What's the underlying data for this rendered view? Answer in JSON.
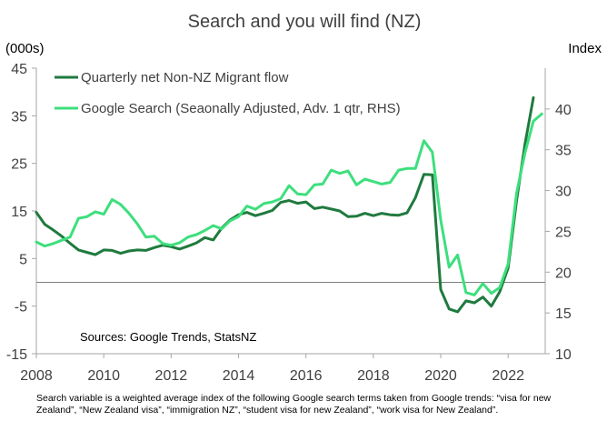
{
  "chart_data": {
    "type": "line",
    "title": "Search and you will find (NZ)",
    "left_axis_label": "(000s)",
    "right_axis_label": "Index",
    "y_left_lim": [
      -15,
      45
    ],
    "y_left_ticks": [
      -15,
      -5,
      5,
      15,
      25,
      35,
      45
    ],
    "y_right_lim": [
      10,
      45
    ],
    "y_right_ticks": [
      10,
      15,
      20,
      25,
      30,
      35,
      40
    ],
    "x_lim": [
      2008,
      2023.1
    ],
    "x_ticks": [
      2008,
      2010,
      2012,
      2014,
      2016,
      2018,
      2020,
      2022
    ],
    "zero_line": 0,
    "source_note": "Sources: Google Trends, StatsNZ",
    "footnote": "Search variable is a weighted average index of the following Google search terms taken from Google trends: “visa for new Zealand”, “New Zealand visa”, “immigration NZ”, “student visa for new Zealand”, “work visa for New Zealand”.",
    "series": [
      {
        "name": "Quarterly net Non-NZ Migrant flow",
        "axis": "left",
        "color": "#1f7a3e",
        "x": [
          2008.0,
          2008.25,
          2008.5,
          2008.75,
          2009.0,
          2009.25,
          2009.5,
          2009.75,
          2010.0,
          2010.25,
          2010.5,
          2010.75,
          2011.0,
          2011.25,
          2011.5,
          2011.75,
          2012.0,
          2012.25,
          2012.5,
          2012.75,
          2013.0,
          2013.25,
          2013.5,
          2013.75,
          2014.0,
          2014.25,
          2014.5,
          2014.75,
          2015.0,
          2015.25,
          2015.5,
          2015.75,
          2016.0,
          2016.25,
          2016.5,
          2016.75,
          2017.0,
          2017.25,
          2017.5,
          2017.75,
          2018.0,
          2018.25,
          2018.5,
          2018.75,
          2019.0,
          2019.25,
          2019.5,
          2019.75,
          2020.0,
          2020.25,
          2020.5,
          2020.75,
          2021.0,
          2021.25,
          2021.5,
          2021.75,
          2022.0,
          2022.25,
          2022.5,
          2022.75
        ],
        "values": [
          14.7,
          12.2,
          11.0,
          9.7,
          8.2,
          6.8,
          6.3,
          5.8,
          6.8,
          6.7,
          6.1,
          6.6,
          6.8,
          6.7,
          7.3,
          7.8,
          7.5,
          7.0,
          7.6,
          8.3,
          9.4,
          8.9,
          11.4,
          13.1,
          14.2,
          14.7,
          14.0,
          14.5,
          15.1,
          16.8,
          17.2,
          16.6,
          16.9,
          15.5,
          15.8,
          15.4,
          15.0,
          13.8,
          13.9,
          14.5,
          14.0,
          14.5,
          14.2,
          14.1,
          14.6,
          17.8,
          22.7,
          22.6,
          -1.5,
          -5.6,
          -6.2,
          -3.9,
          -4.3,
          -3.1,
          -5.0,
          -2.0,
          3.0,
          17.2,
          29.0,
          38.8
        ]
      },
      {
        "name": "Google Search (Seaonally Adjusted, Adv. 1 qtr, RHS)",
        "axis": "right",
        "color": "#3ddf7d",
        "x": [
          2008.0,
          2008.25,
          2008.5,
          2008.75,
          2009.0,
          2009.25,
          2009.5,
          2009.75,
          2010.0,
          2010.25,
          2010.5,
          2010.75,
          2011.0,
          2011.25,
          2011.5,
          2011.75,
          2012.0,
          2012.25,
          2012.5,
          2012.75,
          2013.0,
          2013.25,
          2013.5,
          2013.75,
          2014.0,
          2014.25,
          2014.5,
          2014.75,
          2015.0,
          2015.25,
          2015.5,
          2015.75,
          2016.0,
          2016.25,
          2016.5,
          2016.75,
          2017.0,
          2017.25,
          2017.5,
          2017.75,
          2018.0,
          2018.25,
          2018.5,
          2018.75,
          2019.0,
          2019.25,
          2019.5,
          2019.75,
          2020.0,
          2020.25,
          2020.5,
          2020.75,
          2021.0,
          2021.25,
          2021.5,
          2021.75,
          2022.0,
          2022.25,
          2022.5,
          2022.75,
          2023.0
        ],
        "values": [
          23.7,
          23.2,
          23.5,
          23.9,
          24.3,
          26.6,
          26.8,
          27.4,
          27.1,
          28.9,
          28.3,
          27.2,
          25.9,
          24.3,
          24.4,
          23.5,
          23.3,
          23.6,
          24.3,
          24.6,
          25.1,
          25.7,
          25.3,
          26.3,
          26.8,
          28.1,
          27.7,
          28.4,
          28.6,
          29.0,
          30.6,
          29.6,
          29.5,
          30.7,
          30.8,
          32.5,
          32.1,
          32.4,
          30.7,
          31.4,
          31.1,
          30.8,
          31.0,
          32.5,
          32.7,
          32.7,
          36.1,
          34.7,
          26.4,
          20.6,
          22.1,
          17.5,
          17.2,
          18.6,
          17.4,
          18.1,
          21.0,
          29.7,
          34.6,
          38.5,
          39.4
        ]
      }
    ]
  }
}
